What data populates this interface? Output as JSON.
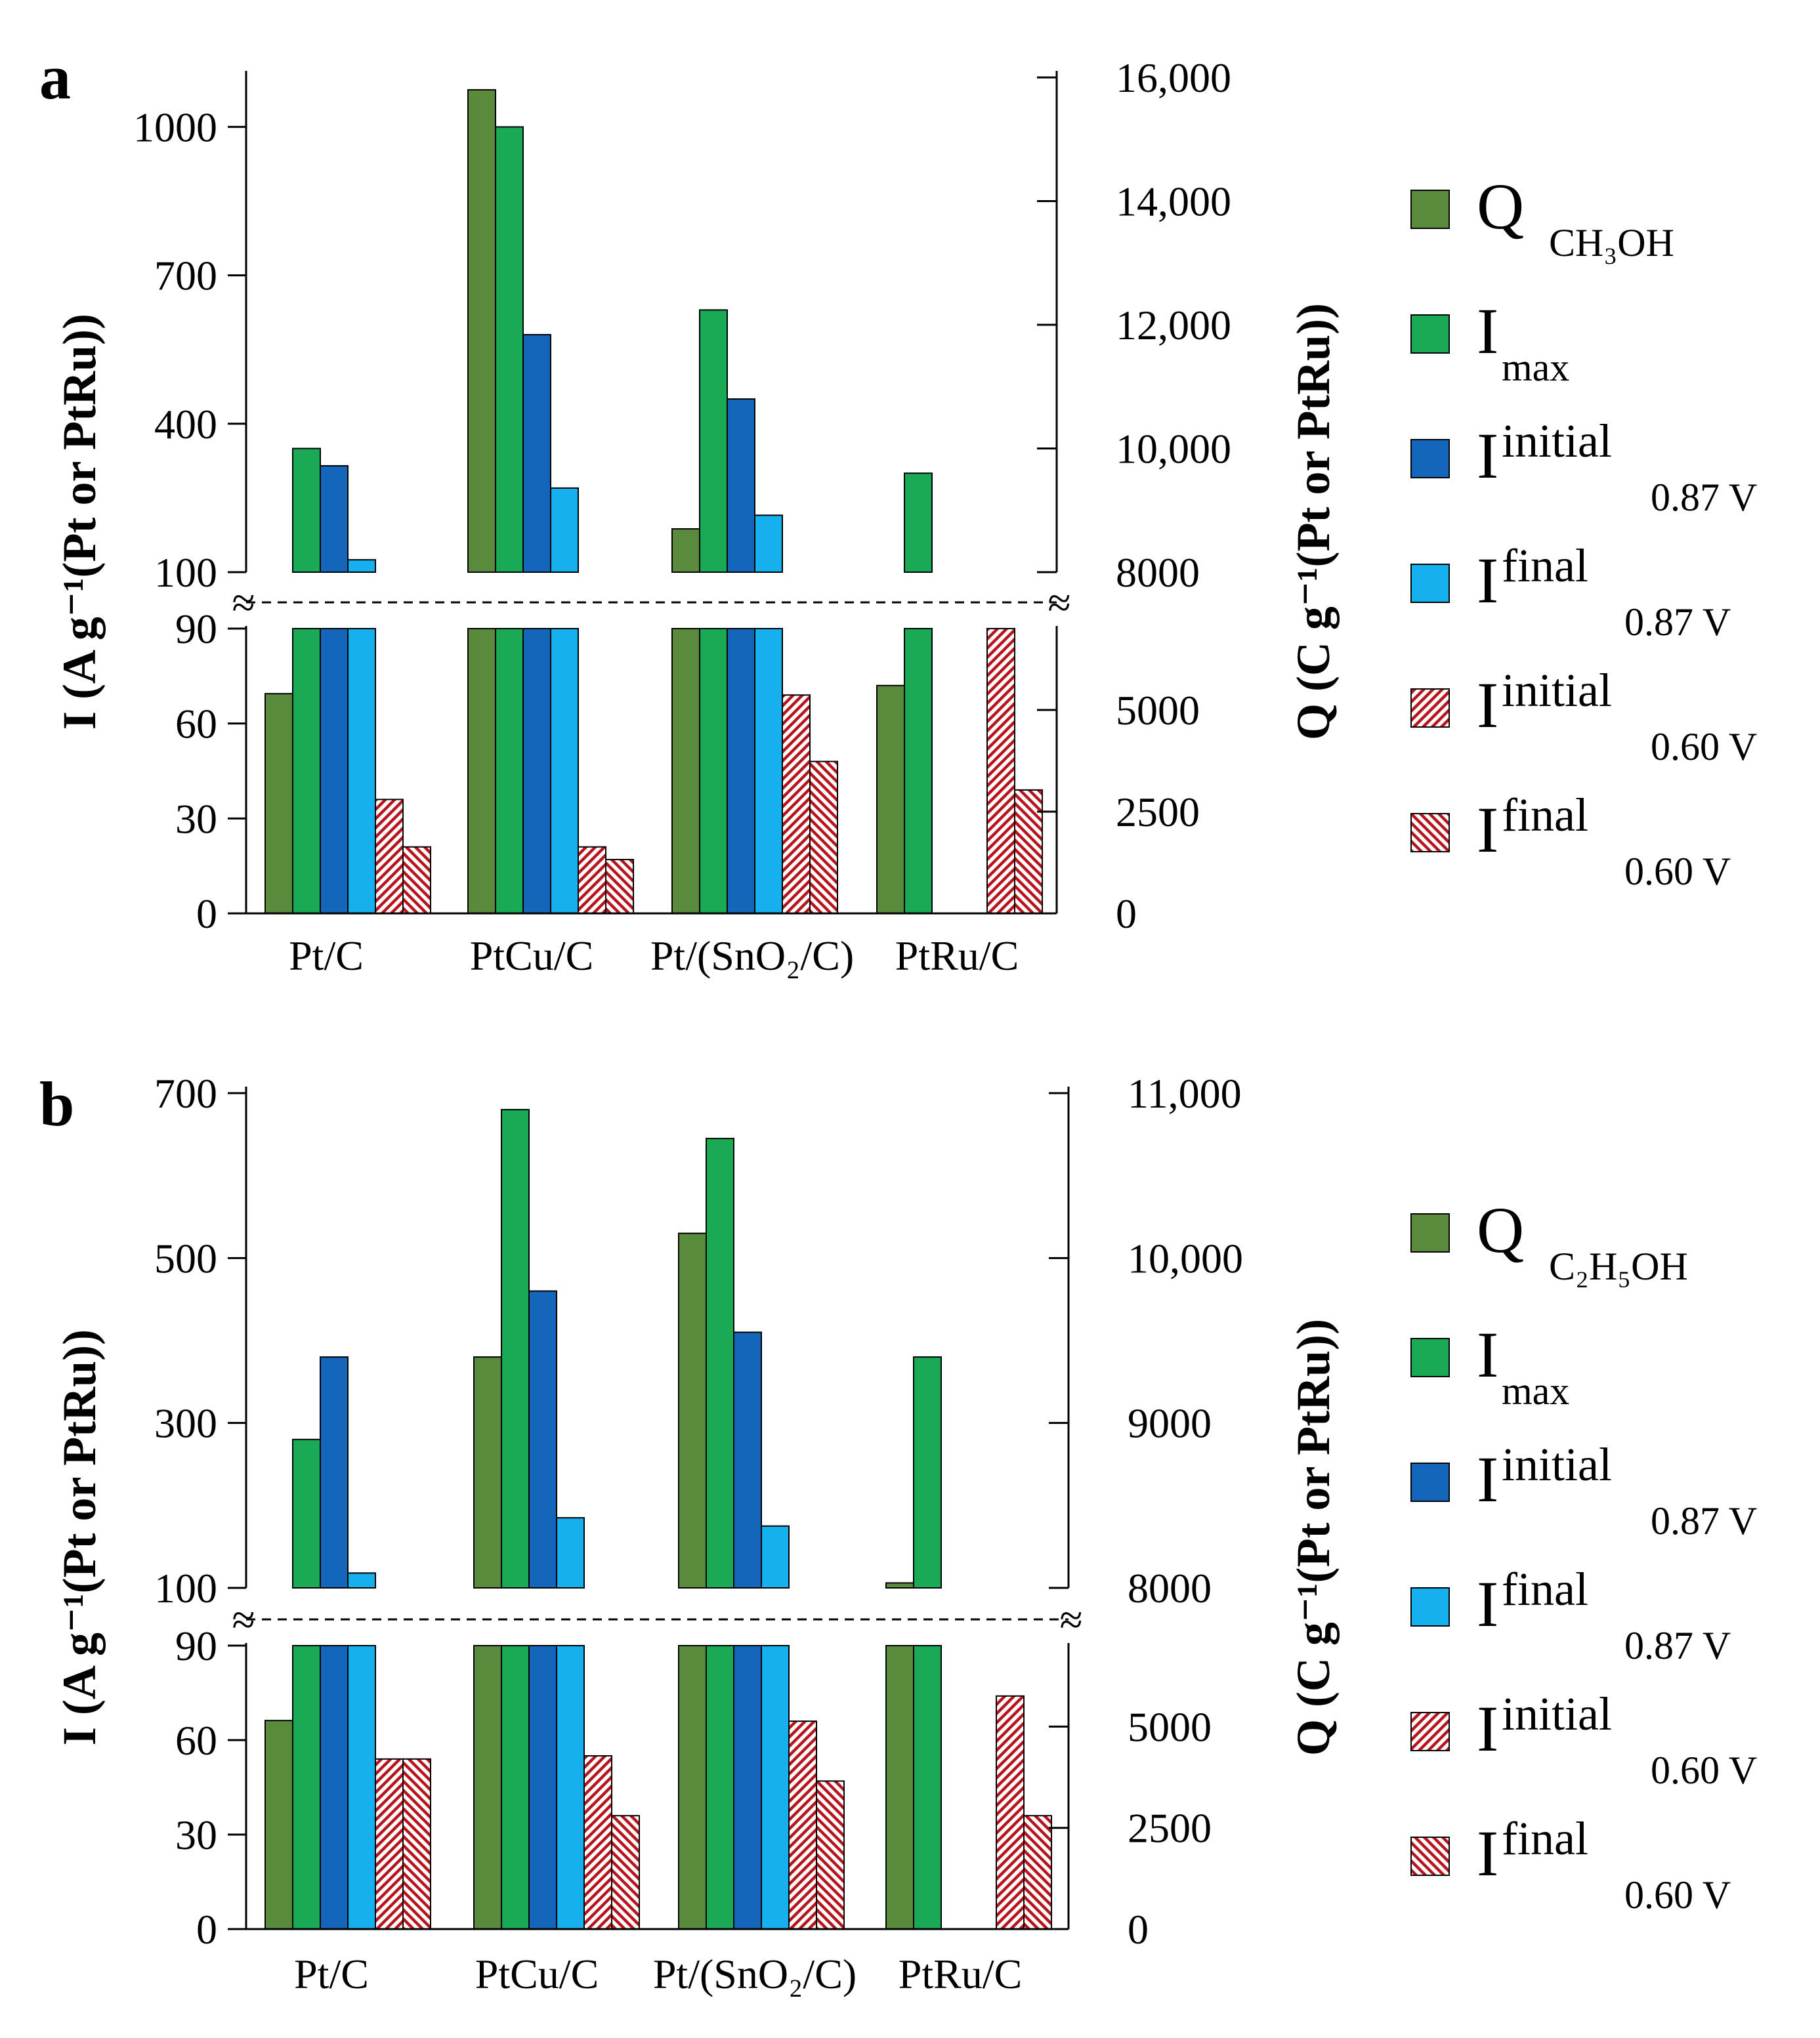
{
  "colors": {
    "q": "#5a8a3c",
    "imax": "#1aaa55",
    "init087": "#1466bb",
    "final087": "#16b0ee",
    "hatch_red": "#b8141c",
    "outline": "#000000"
  },
  "chart_data": [
    {
      "type": "bar",
      "panel_label": "a",
      "title": "",
      "categories": [
        "Pt/C",
        "PtCu/C",
        "Pt/(SnO₂/C)",
        "PtRu/C"
      ],
      "ylabel_left": "I (A g⁻¹(Pt or PtRu))",
      "ylabel_right": "Q (C g⁻¹(Pt or PtRu))",
      "left_axis": {
        "upper_range": [
          100,
          1100
        ],
        "upper_ticks": [
          100,
          400,
          700,
          1000
        ],
        "upper_tick_labels": [
          "100",
          "400",
          "700",
          "1000"
        ],
        "lower_range": [
          0,
          90
        ],
        "lower_ticks": [
          0,
          30,
          60,
          90
        ],
        "lower_tick_labels": [
          "0",
          "30",
          "60",
          "90"
        ]
      },
      "right_axis": {
        "upper_range": [
          8000,
          16000
        ],
        "upper_ticks": [
          8000,
          10000,
          12000,
          14000,
          16000
        ],
        "upper_tick_labels": [
          "8000",
          "10,000",
          "12,000",
          "14,000",
          "16,000"
        ],
        "lower_range": [
          0,
          7000
        ],
        "lower_ticks": [
          0,
          2500,
          5000
        ],
        "lower_tick_labels": [
          "0",
          "2500",
          "5000"
        ]
      },
      "series": [
        {
          "key": "q",
          "axis": "right",
          "legend_main": "Q",
          "legend_sub": "CH₃OH",
          "legend_sup": "",
          "values": [
            5400,
            15800,
            8700,
            5600
          ]
        },
        {
          "key": "imax",
          "axis": "left",
          "legend_main": "I",
          "legend_sub": "max",
          "legend_sup": "",
          "values": [
            350,
            1000,
            630,
            300
          ]
        },
        {
          "key": "init087",
          "axis": "left",
          "legend_main": "I",
          "legend_sub": "0.87 V",
          "legend_sup": "initial",
          "values": [
            315,
            580,
            450,
            null
          ]
        },
        {
          "key": "final087",
          "axis": "left",
          "legend_main": "I",
          "legend_sub": "0.87 V",
          "legend_sup": "final",
          "values": [
            125,
            270,
            215,
            null
          ]
        },
        {
          "key": "init060",
          "axis": "left",
          "legend_main": "I",
          "legend_sub": "0.60 V",
          "legend_sup": "initial",
          "values": [
            36,
            21,
            69,
            90
          ]
        },
        {
          "key": "final060",
          "axis": "left",
          "legend_main": "I",
          "legend_sub": "0.60 V",
          "legend_sup": "final",
          "values": [
            21,
            17,
            48,
            39
          ]
        }
      ]
    },
    {
      "type": "bar",
      "panel_label": "b",
      "title": "",
      "categories": [
        "Pt/C",
        "PtCu/C",
        "Pt/(SnO₂/C)",
        "PtRu/C"
      ],
      "ylabel_left": "I (A g⁻¹(Pt or PtRu))",
      "ylabel_right": "Q (C g⁻¹(Pt or PtRu))",
      "left_axis": {
        "upper_range": [
          100,
          700
        ],
        "upper_ticks": [
          100,
          300,
          500,
          700
        ],
        "upper_tick_labels": [
          "100",
          "300",
          "500",
          "700"
        ],
        "lower_range": [
          0,
          90
        ],
        "lower_ticks": [
          0,
          30,
          60,
          90
        ],
        "lower_tick_labels": [
          "0",
          "30",
          "60",
          "90"
        ]
      },
      "right_axis": {
        "upper_range": [
          8000,
          11000
        ],
        "upper_ticks": [
          8000,
          9000,
          10000,
          11000
        ],
        "upper_tick_labels": [
          "8000",
          "9000",
          "10,000",
          "11,000"
        ],
        "lower_range": [
          0,
          7000
        ],
        "lower_ticks": [
          0,
          2500,
          5000
        ],
        "lower_tick_labels": [
          "0",
          "2500",
          "5000"
        ]
      },
      "series": [
        {
          "key": "q",
          "axis": "right",
          "legend_main": "Q",
          "legend_sub": "C₂H₅OH",
          "legend_sup": "",
          "values": [
            5150,
            9400,
            10150,
            8030
          ]
        },
        {
          "key": "imax",
          "axis": "left",
          "legend_main": "I",
          "legend_sub": "max",
          "legend_sup": "",
          "values": [
            280,
            680,
            645,
            380
          ]
        },
        {
          "key": "init087",
          "axis": "left",
          "legend_main": "I",
          "legend_sub": "0.87 V",
          "legend_sup": "initial",
          "values": [
            380,
            460,
            410,
            null
          ]
        },
        {
          "key": "final087",
          "axis": "left",
          "legend_main": "I",
          "legend_sub": "0.87 V",
          "legend_sup": "final",
          "values": [
            118,
            185,
            175,
            null
          ]
        },
        {
          "key": "init060",
          "axis": "left",
          "legend_main": "I",
          "legend_sub": "0.60 V",
          "legend_sup": "initial",
          "values": [
            54,
            55,
            66,
            74
          ]
        },
        {
          "key": "final060",
          "axis": "left",
          "legend_main": "I",
          "legend_sub": "0.60 V",
          "legend_sup": "final",
          "values": [
            54,
            36,
            47,
            36
          ]
        }
      ]
    }
  ]
}
